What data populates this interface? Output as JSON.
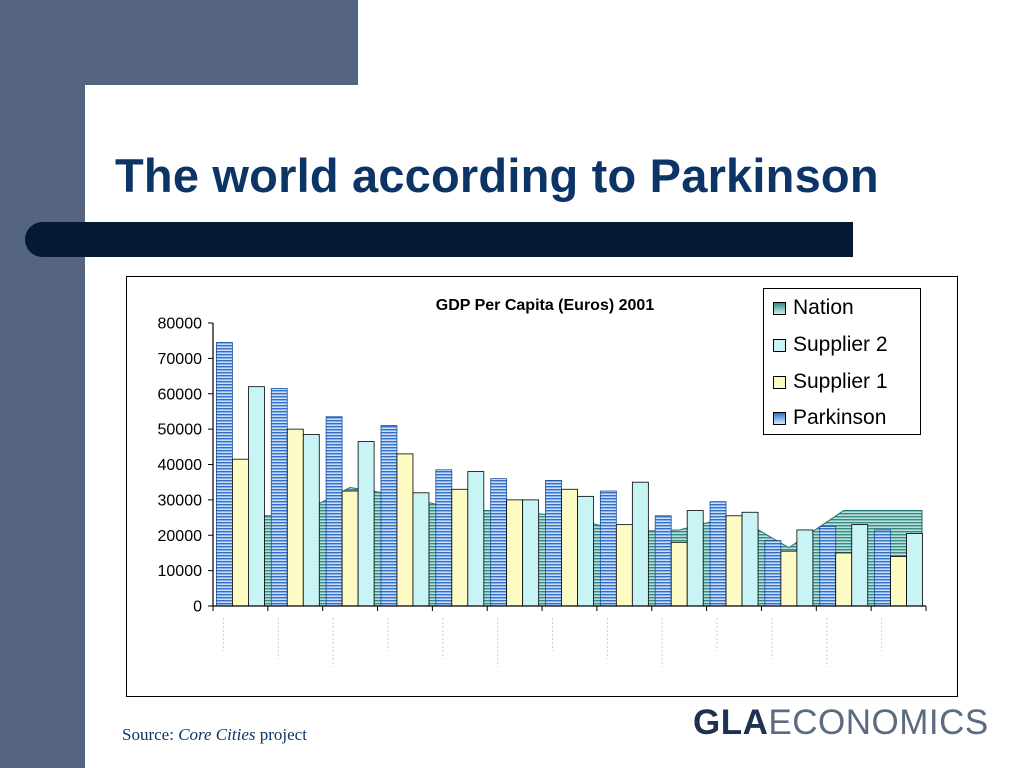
{
  "slide": {
    "title": "The world according to Parkinson",
    "source_prefix": "Source: ",
    "source_italic": "Core Cities",
    "source_suffix": " project",
    "logo_bold": "GLA",
    "logo_rest": "ECONOMICS"
  },
  "colors": {
    "title": "#0d3466",
    "nation": "#3a9a94",
    "supplier2": "#c8f4f6",
    "supplier1": "#fdfbc4",
    "parkinson": "#2e7ad9"
  },
  "chart_data": {
    "type": "bar",
    "title": "GDP Per Capita (Euros) 2001",
    "xlabel": "",
    "ylabel": "",
    "ylim": [
      0,
      80000
    ],
    "yticks": [
      "0",
      "10000",
      "20000",
      "30000",
      "40000",
      "50000",
      "60000",
      "70000",
      "80000"
    ],
    "categories": [
      "",
      "",
      "",
      "",
      "",
      "",
      "",
      "",
      "",
      "",
      "",
      "",
      ""
    ],
    "legend_position": "top-right",
    "series": [
      {
        "name": "Parkinson",
        "kind": "bar",
        "color": "#2e7ad9",
        "values": [
          74500,
          61500,
          53500,
          51000,
          38500,
          36000,
          35500,
          32500,
          25500,
          29500,
          18500,
          22500,
          21500
        ]
      },
      {
        "name": "Supplier 1",
        "kind": "bar",
        "color": "#fdfbc4",
        "values": [
          41500,
          50000,
          32500,
          43000,
          33000,
          30000,
          33000,
          23000,
          18000,
          25500,
          15500,
          15000,
          14000
        ]
      },
      {
        "name": "Supplier 2",
        "kind": "bar",
        "color": "#c8f4f6",
        "values": [
          62000,
          48500,
          46500,
          32000,
          38000,
          30000,
          31000,
          35000,
          27000,
          26500,
          21500,
          23000,
          20500
        ]
      },
      {
        "name": "Nation",
        "kind": "area",
        "color": "#3a9a94",
        "values": [
          25500,
          25500,
          33500,
          31000,
          27000,
          27000,
          25000,
          21000,
          21500,
          25500,
          16500,
          27000,
          27000
        ]
      }
    ],
    "legend": [
      "Nation",
      "Supplier 2",
      "Supplier 1",
      "Parkinson"
    ]
  }
}
